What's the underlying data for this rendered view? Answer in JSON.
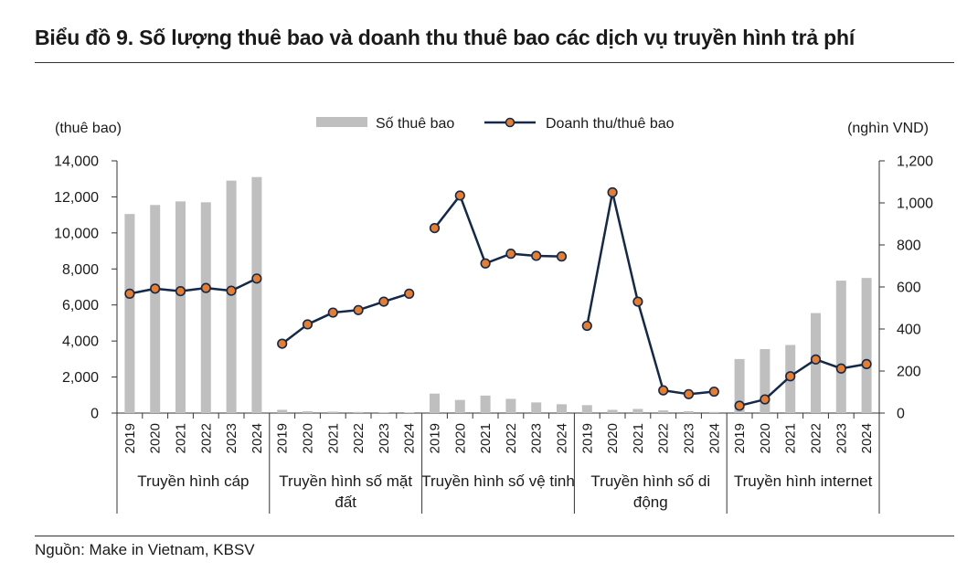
{
  "title": "Biểu đồ 9. Số lượng thuê bao và doanh thu thuê bao các dịch vụ truyền hình trả phí",
  "source": "Nguồn: Make in Vietnam, KBSV",
  "colors": {
    "bar": "#bfbfbf",
    "line": "#13294b",
    "marker_fill": "#e87d2e",
    "marker_stroke": "#13294b"
  },
  "chart_data": {
    "type": "bar+line",
    "left_axis": {
      "label": "(thuê bao)",
      "range": [
        0,
        14000
      ],
      "ticks": [
        "0",
        "2,000",
        "4,000",
        "6,000",
        "8,000",
        "10,000",
        "12,000",
        "14,000"
      ]
    },
    "right_axis": {
      "label": "(nghìn VND)",
      "range": [
        0,
        1200
      ],
      "ticks": [
        "0",
        "200",
        "400",
        "600",
        "800",
        "1,000",
        "1,200"
      ]
    },
    "legend": {
      "bar_label": "Số thuê bao",
      "line_label": "Doanh thu/thuê bao",
      "placement": "top-center"
    },
    "years": [
      "2019",
      "2020",
      "2021",
      "2022",
      "2023",
      "2024"
    ],
    "groups": [
      {
        "name_lines": [
          "Truyền hình cáp"
        ],
        "subscribers": [
          11050,
          11550,
          11750,
          11700,
          12900,
          13100
        ],
        "revenue": [
          568,
          592,
          580,
          595,
          582,
          640
        ]
      },
      {
        "name_lines": [
          "Truyền hình số mặt",
          "đất"
        ],
        "subscribers": [
          180,
          100,
          80,
          60,
          40,
          20
        ],
        "revenue": [
          330,
          422,
          478,
          490,
          530,
          568
        ]
      },
      {
        "name_lines": [
          "Truyền hình số vệ tinh"
        ],
        "subscribers": [
          1080,
          730,
          970,
          790,
          590,
          490
        ],
        "revenue": [
          880,
          1035,
          712,
          758,
          748,
          745
        ]
      },
      {
        "name_lines": [
          "Truyền hình số di",
          "động"
        ],
        "subscribers": [
          440,
          180,
          230,
          150,
          100,
          60
        ],
        "revenue": [
          415,
          1050,
          530,
          108,
          90,
          102
        ]
      },
      {
        "name_lines": [
          "Truyền hình internet"
        ],
        "subscribers": [
          3000,
          3550,
          3780,
          5550,
          7350,
          7500
        ],
        "revenue": [
          35,
          65,
          175,
          255,
          212,
          233
        ]
      }
    ]
  }
}
